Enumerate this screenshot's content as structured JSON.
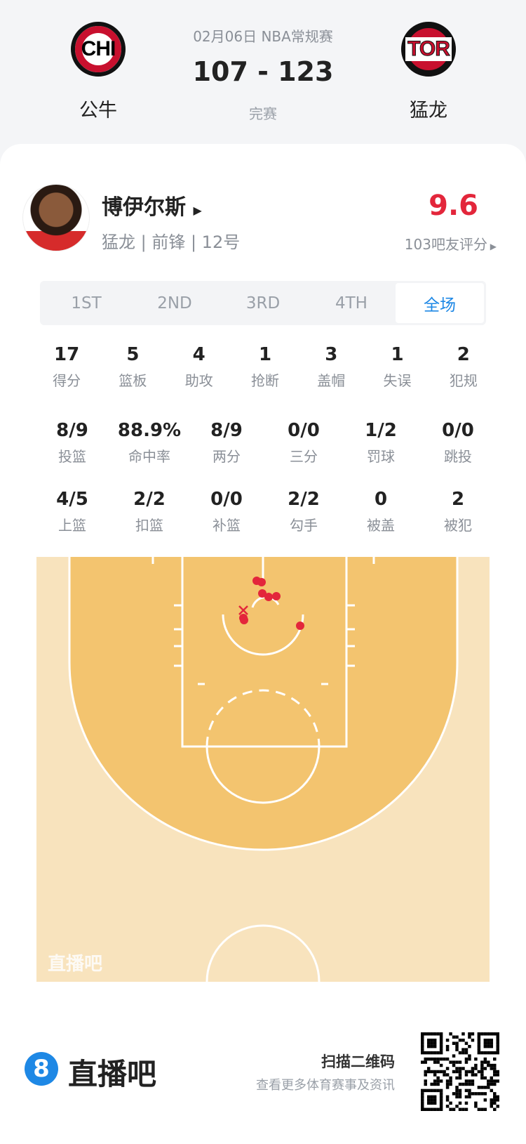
{
  "header": {
    "date": "02月06日 NBA常规赛",
    "score": "107 - 123",
    "status": "完赛",
    "home": {
      "abbr": "CHI",
      "name": "公牛"
    },
    "away": {
      "abbr": "TOR",
      "name": "猛龙"
    }
  },
  "player": {
    "name": "博伊尔斯",
    "info": "猛龙 | 前锋 | 12号",
    "rating": "9.6",
    "rating_label": "103吧友评分",
    "rating_color": "#e3263b"
  },
  "tabs": [
    {
      "label": "1ST"
    },
    {
      "label": "2ND"
    },
    {
      "label": "3RD"
    },
    {
      "label": "4TH"
    },
    {
      "label": "全场",
      "active": true
    }
  ],
  "stats": [
    [
      {
        "v": "17",
        "l": "得分"
      },
      {
        "v": "5",
        "l": "篮板"
      },
      {
        "v": "4",
        "l": "助攻"
      },
      {
        "v": "1",
        "l": "抢断"
      },
      {
        "v": "3",
        "l": "盖帽"
      },
      {
        "v": "1",
        "l": "失误"
      },
      {
        "v": "2",
        "l": "犯规"
      }
    ],
    [
      {
        "v": "8/9",
        "l": "投篮"
      },
      {
        "v": "88.9%",
        "l": "命中率"
      },
      {
        "v": "8/9",
        "l": "两分"
      },
      {
        "v": "0/0",
        "l": "三分"
      },
      {
        "v": "1/2",
        "l": "罚球"
      },
      {
        "v": "0/0",
        "l": "跳投"
      }
    ],
    [
      {
        "v": "4/5",
        "l": "上篮"
      },
      {
        "v": "2/2",
        "l": "扣篮"
      },
      {
        "v": "0/0",
        "l": "补篮"
      },
      {
        "v": "2/2",
        "l": "勾手"
      },
      {
        "v": "0",
        "l": "被盖"
      },
      {
        "v": "2",
        "l": "被犯"
      }
    ]
  ],
  "court": {
    "watermark": "直播吧",
    "made_shots": 8,
    "missed_shots": 1
  },
  "footer": {
    "brand": "直播吧",
    "brand_mark": "8",
    "qr_title": "扫描二维码",
    "qr_sub": "查看更多体育赛事及资讯",
    "accent": "#1e88e5"
  }
}
